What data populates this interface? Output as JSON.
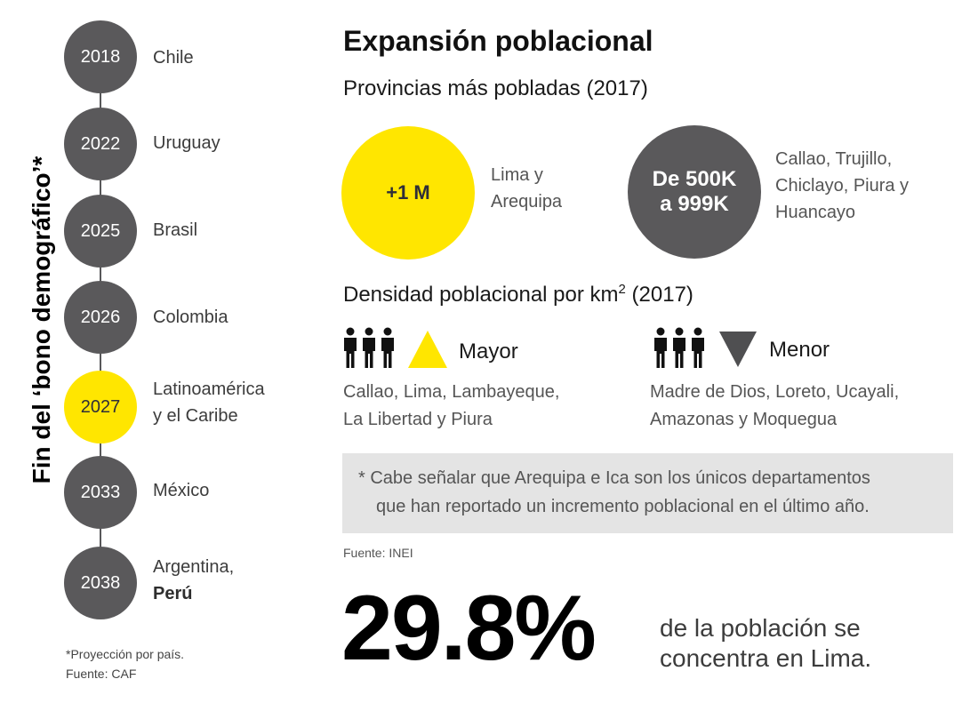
{
  "timeline": {
    "vertical_title": "Fin del ‘bono demográfico’*",
    "items": [
      {
        "year": "2018",
        "country": "Chile"
      },
      {
        "year": "2022",
        "country": "Uruguay"
      },
      {
        "year": "2025",
        "country": "Brasil"
      },
      {
        "year": "2026",
        "country": "Colombia"
      },
      {
        "year": "2027",
        "country_line1": "Latinoamérica",
        "country_line2": "y el Caribe",
        "highlight": true
      },
      {
        "year": "2033",
        "country": "México"
      },
      {
        "year": "2038",
        "country_line1": "Argentina,",
        "country_line2": "Perú"
      }
    ],
    "footnote": "*Proyección por país.",
    "source": "Fuente: CAF"
  },
  "main": {
    "title": "Expansión poblacional",
    "subtitle_provinces": "Provincias más pobladas (2017)",
    "circle_yellow": {
      "value": "+1 M",
      "caption_line1": "Lima y",
      "caption_line2": "Arequipa"
    },
    "circle_grey": {
      "value_line1": "De 500K",
      "value_line2": "a 999K",
      "caption_line1": "Callao, Trujillo,",
      "caption_line2": "Chiclayo, Piura y",
      "caption_line3": "Huancayo"
    },
    "subtitle_density": "Densidad poblacional por km",
    "subtitle_density_sup": "2",
    "subtitle_density_year": " (2017)",
    "density_high": {
      "label": "Mayor",
      "line1": "Callao, Lima, Lambayeque,",
      "line2": "La Libertad y Piura"
    },
    "density_low": {
      "label": "Menor",
      "line1": "Madre de Dios, Loreto, Ucayali,",
      "line2": "Amazonas y Moquegua"
    },
    "note_line1": "* Cabe señalar que Arequipa e Ica son los únicos departamentos",
    "note_line2": "que han reportado un incremento poblacional en el último año.",
    "source": "Fuente: INEI",
    "stat_value": "29.8%",
    "stat_caption_line1": "de la población se",
    "stat_caption_line2": "concentra en Lima."
  },
  "colors": {
    "yellow": "#ffe600",
    "dark_grey": "#5a595b",
    "note_bg": "#e4e4e4"
  },
  "icons": [
    "people-group-icon",
    "triangle-up-icon",
    "triangle-down-icon"
  ]
}
